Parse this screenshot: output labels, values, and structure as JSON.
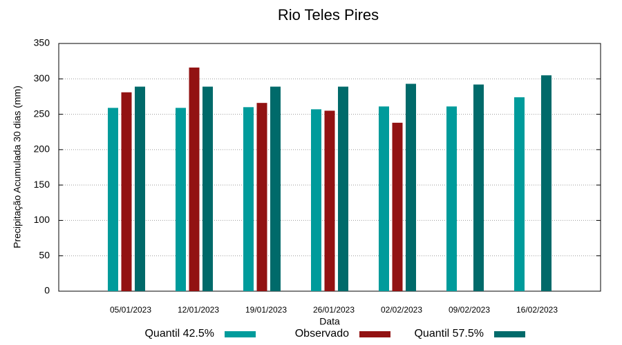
{
  "chart_data": {
    "type": "bar",
    "title": "Rio Teles Pires",
    "x_label": "Data",
    "y_label": "Precipitação Acumulada 30 dias (mm)",
    "categories": [
      "05/01/2023",
      "12/01/2023",
      "19/01/2023",
      "26/01/2023",
      "02/02/2023",
      "09/02/2023",
      "16/02/2023"
    ],
    "series": [
      {
        "name": "Quantil 42.5%",
        "color": "#009b9b",
        "values": [
          259,
          259,
          260,
          257,
          261,
          261,
          274
        ]
      },
      {
        "name": "Observado",
        "color": "#921212",
        "values": [
          281,
          316,
          266,
          255,
          238,
          null,
          null
        ]
      },
      {
        "name": "Quantil 57.5%",
        "color": "#006a6a",
        "values": [
          289,
          289,
          289,
          289,
          293,
          292,
          305
        ]
      }
    ],
    "ylim": [
      0,
      350
    ],
    "yticks": [
      0,
      50,
      100,
      150,
      200,
      250,
      300,
      350
    ],
    "grid": true,
    "legend": "bottom"
  }
}
